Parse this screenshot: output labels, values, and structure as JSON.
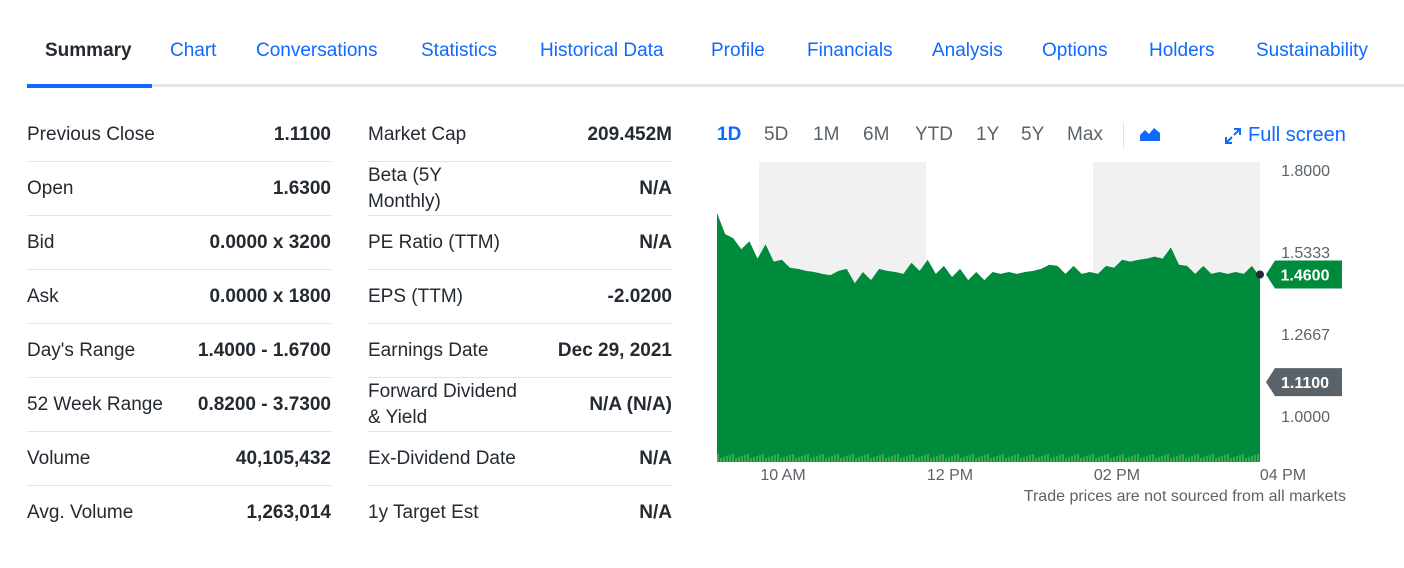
{
  "tabs": [
    {
      "label": "Summary",
      "active": true
    },
    {
      "label": "Chart"
    },
    {
      "label": "Conversations"
    },
    {
      "label": "Statistics"
    },
    {
      "label": "Historical Data"
    },
    {
      "label": "Profile"
    },
    {
      "label": "Financials"
    },
    {
      "label": "Analysis"
    },
    {
      "label": "Options"
    },
    {
      "label": "Holders"
    },
    {
      "label": "Sustainability"
    }
  ],
  "stats_left": [
    {
      "label": "Previous Close",
      "value": "1.1100"
    },
    {
      "label": "Open",
      "value": "1.6300"
    },
    {
      "label": "Bid",
      "value": "0.0000 x 3200"
    },
    {
      "label": "Ask",
      "value": "0.0000 x 1800"
    },
    {
      "label": "Day's Range",
      "value": "1.4000 - 1.6700"
    },
    {
      "label": "52 Week Range",
      "value": "0.8200 - 3.7300"
    },
    {
      "label": "Volume",
      "value": "40,105,432"
    },
    {
      "label": "Avg. Volume",
      "value": "1,263,014"
    }
  ],
  "stats_right": [
    {
      "label": "Market Cap",
      "value": "209.452M"
    },
    {
      "label": "Beta (5Y Monthly)",
      "value": "N/A"
    },
    {
      "label": "PE Ratio (TTM)",
      "value": "N/A"
    },
    {
      "label": "EPS (TTM)",
      "value": "-2.0200"
    },
    {
      "label": "Earnings Date",
      "value": "Dec 29, 2021"
    },
    {
      "label": "Forward Dividend & Yield",
      "value": "N/A (N/A)"
    },
    {
      "label": "Ex-Dividend Date",
      "value": "N/A"
    },
    {
      "label": "1y Target Est",
      "value": "N/A"
    }
  ],
  "chart_controls": {
    "ranges": [
      "1D",
      "5D",
      "1M",
      "6M",
      "YTD",
      "1Y",
      "5Y",
      "Max"
    ],
    "active_range": "1D",
    "chart_type_icon": "area-chart-icon",
    "fullscreen_label": "Full screen",
    "fullscreen_icon": "expand-arrows-icon"
  },
  "chart_data": {
    "type": "area",
    "x_ticks": [
      "10 AM",
      "12 PM",
      "02 PM",
      "04 PM"
    ],
    "y_ticks": [
      "1.8000",
      "1.5333",
      "1.2667",
      "1.0000"
    ],
    "ylim": [
      0.85,
      1.8
    ],
    "current_price_label": "1.4600",
    "current_price": 1.46,
    "previous_close_label": "1.1100",
    "previous_close": 1.11,
    "series": [
      {
        "values": [
          1.66,
          1.6,
          1.57,
          1.55,
          1.56,
          1.52,
          1.55,
          1.51,
          1.5,
          1.49,
          1.47,
          1.48,
          1.46,
          1.47,
          1.45,
          1.48,
          1.47,
          1.44,
          1.46,
          1.45,
          1.47,
          1.48,
          1.46,
          1.47,
          1.49,
          1.48,
          1.5,
          1.47,
          1.48,
          1.46,
          1.47,
          1.45,
          1.46,
          1.45,
          1.46,
          1.47,
          1.46,
          1.47,
          1.46,
          1.48,
          1.47,
          1.5,
          1.48,
          1.47,
          1.48,
          1.47,
          1.46,
          1.47,
          1.48,
          1.49,
          1.5,
          1.51,
          1.5,
          1.52,
          1.51,
          1.52,
          1.54,
          1.5,
          1.48,
          1.47,
          1.48,
          1.47,
          1.46,
          1.47,
          1.46,
          1.47,
          1.48,
          1.46
        ]
      }
    ],
    "volume_color": "#4caf50",
    "fill_color": "#008a3c",
    "up_color": "#008a3c",
    "neutral_color": "#5b636a"
  },
  "disclaimer": "Trade prices are not sourced from all markets"
}
